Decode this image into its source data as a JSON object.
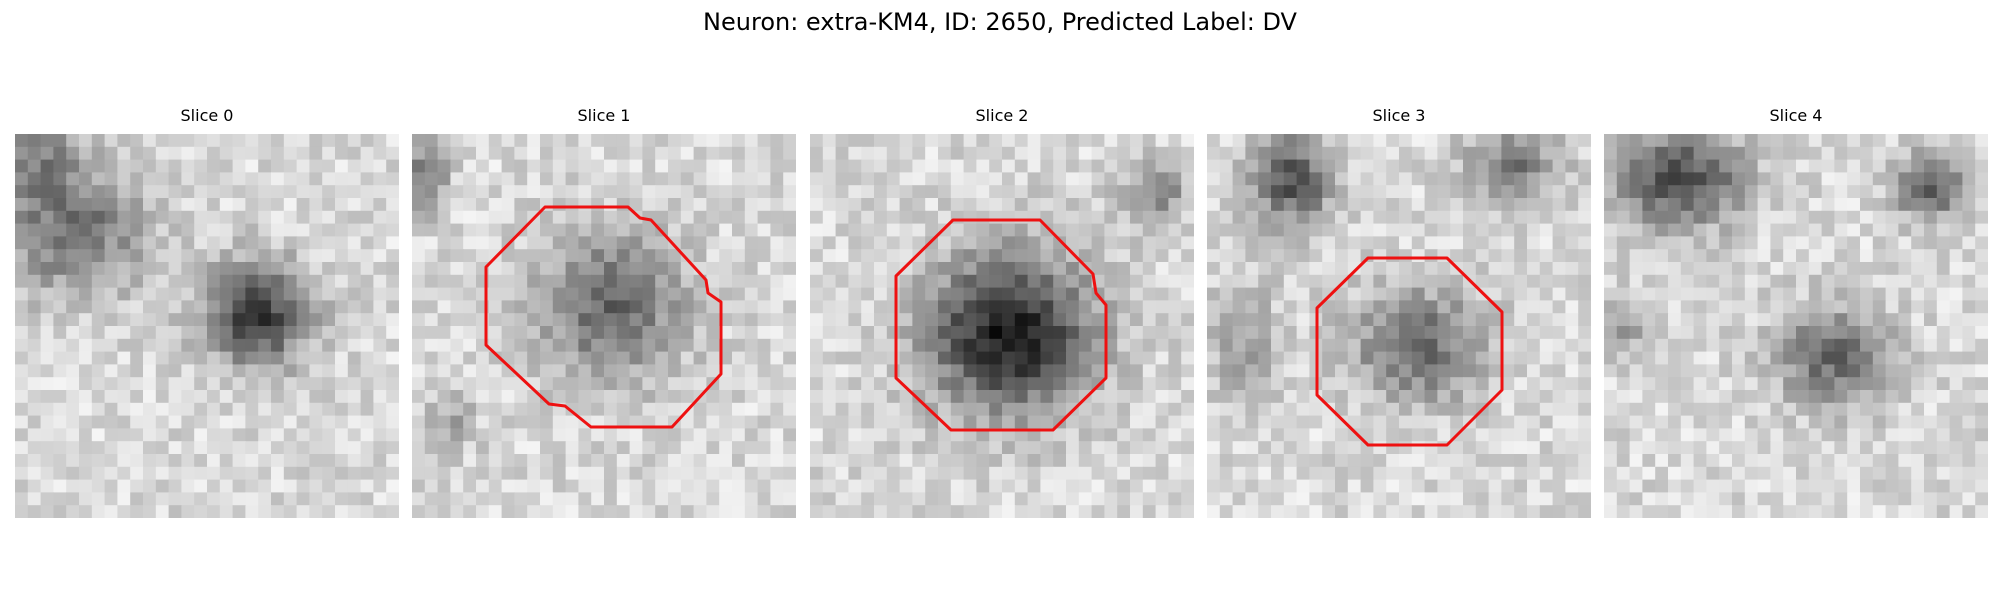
{
  "figure": {
    "title": "Neuron: extra-KM4, ID: 2650, Predicted Label: DV"
  },
  "panels": [
    {
      "title": "Slice 0",
      "contour": false,
      "blob": [
        0.63,
        0.47,
        0.16,
        0.16,
        0.85
      ],
      "extra": [
        [
          0.15,
          0.25,
          0.22,
          0.2,
          0.55
        ],
        [
          0.05,
          0.05,
          0.12,
          0.12,
          0.4
        ]
      ],
      "seed": 11
    },
    {
      "title": "Slice 1",
      "contour": true,
      "blob": [
        0.52,
        0.45,
        0.22,
        0.22,
        0.6
      ],
      "extra": [
        [
          0.04,
          0.1,
          0.06,
          0.12,
          0.5
        ],
        [
          0.1,
          0.75,
          0.08,
          0.1,
          0.25
        ]
      ],
      "seed": 23
    },
    {
      "title": "Slice 2",
      "contour": true,
      "blob": [
        0.52,
        0.52,
        0.25,
        0.24,
        1.0
      ],
      "extra": [
        [
          0.9,
          0.15,
          0.1,
          0.1,
          0.45
        ]
      ],
      "seed": 37
    },
    {
      "title": "Slice 3",
      "contour": true,
      "blob": [
        0.55,
        0.55,
        0.2,
        0.17,
        0.6
      ],
      "extra": [
        [
          0.22,
          0.12,
          0.13,
          0.14,
          0.7
        ],
        [
          0.8,
          0.08,
          0.14,
          0.12,
          0.5
        ],
        [
          0.1,
          0.55,
          0.1,
          0.2,
          0.3
        ]
      ],
      "seed": 41
    },
    {
      "title": "Slice 4",
      "contour": false,
      "blob": [
        0.6,
        0.58,
        0.17,
        0.15,
        0.6
      ],
      "extra": [
        [
          0.2,
          0.12,
          0.2,
          0.14,
          0.75
        ],
        [
          0.85,
          0.14,
          0.1,
          0.1,
          0.7
        ],
        [
          0.05,
          0.5,
          0.08,
          0.1,
          0.3
        ]
      ],
      "seed": 53
    }
  ],
  "style": {
    "contour_color": "#ee1111"
  }
}
